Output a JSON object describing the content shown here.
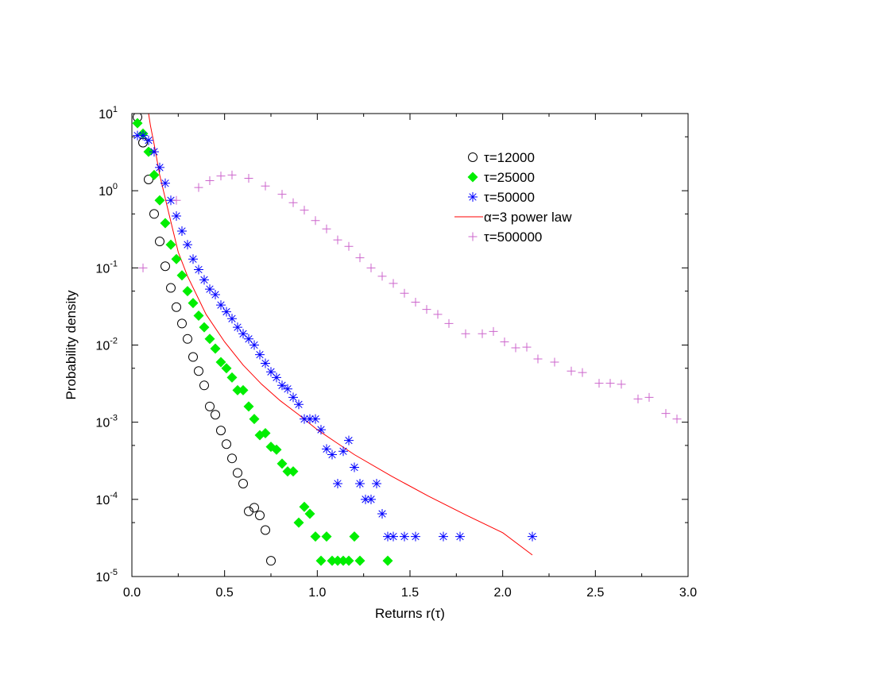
{
  "chart_data": {
    "type": "scatter",
    "title": "",
    "xlabel": "Returns r(τ)",
    "ylabel": "Probability density",
    "xlim": [
      0,
      3.0
    ],
    "ylim": [
      1e-05,
      10
    ],
    "yscale": "log",
    "grid": false,
    "legend_position": "top-right",
    "x_ticks": [
      {
        "value": 0.0,
        "label": "0.0"
      },
      {
        "value": 0.5,
        "label": "0.5"
      },
      {
        "value": 1.0,
        "label": "1.0"
      },
      {
        "value": 1.5,
        "label": "1.5"
      },
      {
        "value": 2.0,
        "label": "2.0"
      },
      {
        "value": 2.5,
        "label": "2.5"
      },
      {
        "value": 3.0,
        "label": "3.0"
      }
    ],
    "y_ticks": [
      {
        "value": 10,
        "base": "10",
        "exp": "1"
      },
      {
        "value": 1,
        "base": "10",
        "exp": "0"
      },
      {
        "value": 0.1,
        "base": "10",
        "exp": "-1"
      },
      {
        "value": 0.01,
        "base": "10",
        "exp": "-2"
      },
      {
        "value": 0.001,
        "base": "10",
        "exp": "-3"
      },
      {
        "value": 0.0001,
        "base": "10",
        "exp": "-4"
      },
      {
        "value": 1e-05,
        "base": "10",
        "exp": "-5"
      }
    ],
    "series": [
      {
        "name": "τ=12000",
        "marker": "circle",
        "color": "#000000",
        "points": [
          [
            0.03,
            9.0
          ],
          [
            0.06,
            4.2
          ],
          [
            0.09,
            1.4
          ],
          [
            0.12,
            0.5
          ],
          [
            0.15,
            0.22
          ],
          [
            0.18,
            0.105
          ],
          [
            0.21,
            0.055
          ],
          [
            0.24,
            0.031
          ],
          [
            0.27,
            0.019
          ],
          [
            0.3,
            0.012
          ],
          [
            0.33,
            0.007
          ],
          [
            0.36,
            0.0046
          ],
          [
            0.39,
            0.003
          ],
          [
            0.42,
            0.0016
          ],
          [
            0.45,
            0.00125
          ],
          [
            0.48,
            0.00078
          ],
          [
            0.51,
            0.00052
          ],
          [
            0.54,
            0.00034
          ],
          [
            0.57,
            0.00022
          ],
          [
            0.6,
            0.00016
          ],
          [
            0.63,
            7e-05
          ],
          [
            0.66,
            7.8e-05
          ],
          [
            0.69,
            6.2e-05
          ],
          [
            0.72,
            4e-05
          ],
          [
            0.75,
            1.6e-05
          ]
        ]
      },
      {
        "name": "τ=25000",
        "marker": "diamond",
        "color": "#00ee00",
        "points": [
          [
            0.03,
            7.5
          ],
          [
            0.06,
            5.5
          ],
          [
            0.09,
            3.2
          ],
          [
            0.12,
            1.6
          ],
          [
            0.15,
            0.75
          ],
          [
            0.18,
            0.38
          ],
          [
            0.21,
            0.2
          ],
          [
            0.24,
            0.13
          ],
          [
            0.27,
            0.08
          ],
          [
            0.3,
            0.05
          ],
          [
            0.33,
            0.035
          ],
          [
            0.36,
            0.024
          ],
          [
            0.39,
            0.017
          ],
          [
            0.42,
            0.012
          ],
          [
            0.45,
            0.009
          ],
          [
            0.48,
            0.006
          ],
          [
            0.51,
            0.005
          ],
          [
            0.54,
            0.0038
          ],
          [
            0.57,
            0.0026
          ],
          [
            0.6,
            0.0026
          ],
          [
            0.63,
            0.0016
          ],
          [
            0.66,
            0.0011
          ],
          [
            0.69,
            0.00068
          ],
          [
            0.72,
            0.00072
          ],
          [
            0.75,
            0.00048
          ],
          [
            0.78,
            0.00044
          ],
          [
            0.81,
            0.00029
          ],
          [
            0.84,
            0.00023
          ],
          [
            0.87,
            0.00023
          ],
          [
            0.9,
            5e-05
          ],
          [
            0.93,
            8e-05
          ],
          [
            0.96,
            6.5e-05
          ],
          [
            0.99,
            3.3e-05
          ],
          [
            1.02,
            1.6e-05
          ],
          [
            1.05,
            3.3e-05
          ],
          [
            1.08,
            1.6e-05
          ],
          [
            1.11,
            1.6e-05
          ],
          [
            1.14,
            1.6e-05
          ],
          [
            1.17,
            1.6e-05
          ],
          [
            1.2,
            3.3e-05
          ],
          [
            1.23,
            1.6e-05
          ],
          [
            1.38,
            1.6e-05
          ]
        ]
      },
      {
        "name": "τ=50000",
        "marker": "star",
        "color": "#0000ff",
        "points": [
          [
            0.03,
            5.2
          ],
          [
            0.06,
            5.2
          ],
          [
            0.09,
            4.5
          ],
          [
            0.12,
            3.2
          ],
          [
            0.15,
            2.0
          ],
          [
            0.18,
            1.25
          ],
          [
            0.21,
            0.75
          ],
          [
            0.24,
            0.47
          ],
          [
            0.27,
            0.3
          ],
          [
            0.3,
            0.2
          ],
          [
            0.33,
            0.13
          ],
          [
            0.36,
            0.095
          ],
          [
            0.39,
            0.07
          ],
          [
            0.42,
            0.053
          ],
          [
            0.45,
            0.045
          ],
          [
            0.48,
            0.033
          ],
          [
            0.51,
            0.027
          ],
          [
            0.54,
            0.022
          ],
          [
            0.57,
            0.017
          ],
          [
            0.6,
            0.014
          ],
          [
            0.63,
            0.012
          ],
          [
            0.66,
            0.01
          ],
          [
            0.69,
            0.0075
          ],
          [
            0.72,
            0.0058
          ],
          [
            0.75,
            0.0045
          ],
          [
            0.78,
            0.0038
          ],
          [
            0.81,
            0.003
          ],
          [
            0.84,
            0.0027
          ],
          [
            0.87,
            0.0021
          ],
          [
            0.9,
            0.0017
          ],
          [
            0.93,
            0.0011
          ],
          [
            0.96,
            0.0011
          ],
          [
            0.99,
            0.0011
          ],
          [
            1.02,
            0.0008
          ],
          [
            1.05,
            0.00045
          ],
          [
            1.08,
            0.00038
          ],
          [
            1.11,
            0.00016
          ],
          [
            1.14,
            0.00042
          ],
          [
            1.17,
            0.00058
          ],
          [
            1.2,
            0.00026
          ],
          [
            1.23,
            0.00016
          ],
          [
            1.26,
            0.0001
          ],
          [
            1.29,
            0.0001
          ],
          [
            1.32,
            0.00016
          ],
          [
            1.35,
            6.5e-05
          ],
          [
            1.38,
            3.3e-05
          ],
          [
            1.41,
            3.3e-05
          ],
          [
            1.47,
            3.3e-05
          ],
          [
            1.53,
            3.3e-05
          ],
          [
            1.68,
            3.3e-05
          ],
          [
            1.77,
            3.3e-05
          ],
          [
            2.16,
            3.3e-05
          ]
        ]
      },
      {
        "name": "α=3 power law",
        "marker": "line",
        "color": "#ff0000",
        "points": [
          [
            0.09,
            10.0
          ],
          [
            0.1,
            7.0
          ],
          [
            0.12,
            4.0
          ],
          [
            0.15,
            1.6
          ],
          [
            0.2,
            0.5
          ],
          [
            0.25,
            0.16
          ],
          [
            0.3,
            0.078
          ],
          [
            0.4,
            0.025
          ],
          [
            0.5,
            0.011
          ],
          [
            0.6,
            0.0055
          ],
          [
            0.7,
            0.0031
          ],
          [
            0.8,
            0.0019
          ],
          [
            0.9,
            0.00125
          ],
          [
            1.0,
            0.0008
          ],
          [
            1.1,
            0.00055
          ],
          [
            1.2,
            0.00038
          ],
          [
            1.4,
            0.0002
          ],
          [
            1.6,
            0.00011
          ],
          [
            1.8,
            6.3e-05
          ],
          [
            2.0,
            3.7e-05
          ],
          [
            2.16,
            1.9e-05
          ]
        ]
      },
      {
        "name": "τ=500000",
        "marker": "plus",
        "color": "#cc66cc",
        "points": [
          [
            0.06,
            0.1
          ],
          [
            0.24,
            0.75
          ],
          [
            0.36,
            1.1
          ],
          [
            0.42,
            1.35
          ],
          [
            0.48,
            1.55
          ],
          [
            0.54,
            1.6
          ],
          [
            0.63,
            1.45
          ],
          [
            0.72,
            1.15
          ],
          [
            0.81,
            0.9
          ],
          [
            0.87,
            0.7
          ],
          [
            0.93,
            0.56
          ],
          [
            0.99,
            0.41
          ],
          [
            1.05,
            0.32
          ],
          [
            1.11,
            0.23
          ],
          [
            1.17,
            0.19
          ],
          [
            1.23,
            0.135
          ],
          [
            1.29,
            0.1
          ],
          [
            1.35,
            0.078
          ],
          [
            1.41,
            0.063
          ],
          [
            1.47,
            0.047
          ],
          [
            1.53,
            0.036
          ],
          [
            1.59,
            0.029
          ],
          [
            1.65,
            0.025
          ],
          [
            1.71,
            0.019
          ],
          [
            1.8,
            0.014
          ],
          [
            1.89,
            0.014
          ],
          [
            1.95,
            0.015
          ],
          [
            2.01,
            0.011
          ],
          [
            2.07,
            0.0092
          ],
          [
            2.13,
            0.0094
          ],
          [
            2.19,
            0.0066
          ],
          [
            2.28,
            0.006
          ],
          [
            2.37,
            0.0046
          ],
          [
            2.43,
            0.0044
          ],
          [
            2.52,
            0.0032
          ],
          [
            2.58,
            0.0032
          ],
          [
            2.64,
            0.0031
          ],
          [
            2.73,
            0.002
          ],
          [
            2.79,
            0.0021
          ],
          [
            2.88,
            0.0013
          ],
          [
            2.94,
            0.0011
          ]
        ]
      }
    ]
  }
}
